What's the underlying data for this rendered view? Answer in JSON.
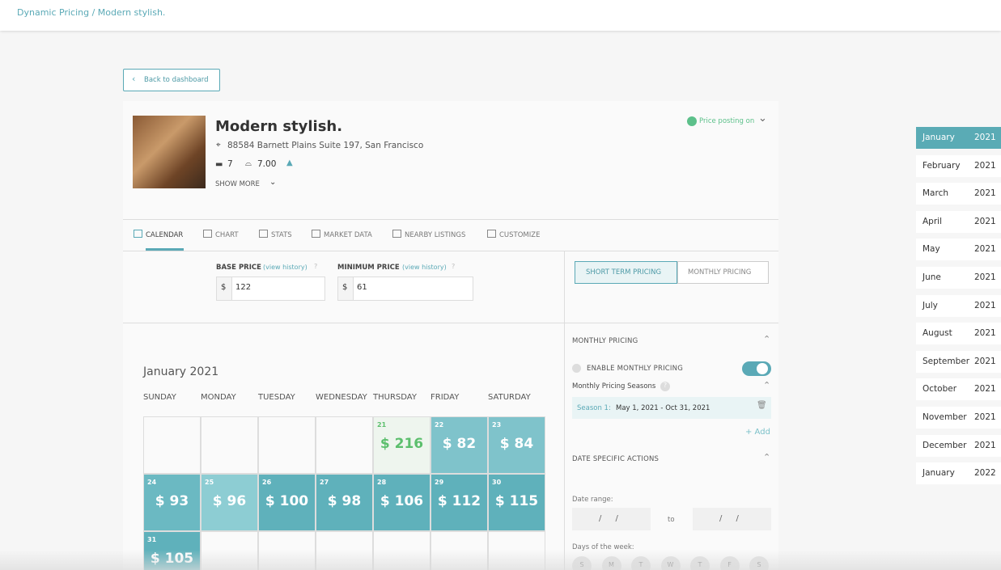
{
  "breadcrumb": "Dynamic Pricing / Modern stylish.",
  "back_button": "Back to dashboard",
  "listing": {
    "title": "Modern stylish.",
    "address": "88584 Barnett Plains Suite 197, San Francisco",
    "bedrooms": 7,
    "bathrooms": "7.00",
    "show_more": "SHOW MORE",
    "status": "Price posting on"
  },
  "tabs": [
    "CALENDAR",
    "CHART",
    "STATS",
    "MARKET DATA",
    "NEARBY LISTINGS",
    "CUSTOMIZE"
  ],
  "pricing": {
    "base": {
      "label": "BASE PRICE",
      "link": "(view history)",
      "help": "?",
      "currency": "$",
      "value": 122
    },
    "minimum": {
      "label": "MINIMUM PRICE",
      "link": "(view history)",
      "help": "?",
      "currency": "$",
      "value": 61
    }
  },
  "pricing_modes": [
    "SHORT TERM PRICING",
    "MONTHLY PRICING"
  ],
  "calendar": {
    "title": "January 2021",
    "weekdays": [
      "SUNDAY",
      "MONDAY",
      "TUESDAY",
      "WEDNESDAY",
      "THURSDAY",
      "FRIDAY",
      "SATURDAY"
    ],
    "cells": [
      null,
      null,
      null,
      null,
      {
        "day": 21,
        "price": "$ 216",
        "color": "#eef5ee"
      },
      {
        "day": 22,
        "price": "$ 82",
        "color": "#7fc3cb"
      },
      {
        "day": 23,
        "price": "$ 84",
        "color": "#7fc3cb"
      },
      {
        "day": 24,
        "price": "$ 93",
        "color": "#6bb9c2"
      },
      {
        "day": 25,
        "price": "$ 96",
        "color": "#8dcdd3"
      },
      {
        "day": 26,
        "price": "$ 100",
        "color": "#5fb1bb"
      },
      {
        "day": 27,
        "price": "$ 98",
        "color": "#5fb1bb"
      },
      {
        "day": 28,
        "price": "$ 106",
        "color": "#5fb1bb"
      },
      {
        "day": 29,
        "price": "$ 112",
        "color": "#5fb1bb"
      },
      {
        "day": 30,
        "price": "$ 115",
        "color": "#5fb1bb"
      },
      {
        "day": 31,
        "price": "$ 105",
        "color": "#5fb1bb"
      },
      null,
      null,
      null,
      null,
      null,
      null
    ]
  },
  "monthly_pricing": {
    "title": "MONTHLY PRICING",
    "enable": "ENABLE MONTHLY PRICING",
    "seasons_label": "Monthly Pricing Seasons",
    "help": "?",
    "season_label": "Season 1:",
    "season_range": "May 1, 2021 - Oct 31, 2021",
    "add": "+ Add"
  },
  "date_actions": {
    "title": "DATE SPECIFIC ACTIONS",
    "date_range_label": "Date range:",
    "date_placeholder": "/ /",
    "to": "to",
    "days_label": "Days of the week:",
    "days": [
      "S",
      "M",
      "T",
      "W",
      "T",
      "F",
      "S"
    ]
  },
  "months": [
    {
      "month": "January",
      "year": 2021
    },
    {
      "month": "February",
      "year": 2021
    },
    {
      "month": "March",
      "year": 2021
    },
    {
      "month": "April",
      "year": 2021
    },
    {
      "month": "May",
      "year": 2021
    },
    {
      "month": "June",
      "year": 2021
    },
    {
      "month": "July",
      "year": 2021
    },
    {
      "month": "August",
      "year": 2021
    },
    {
      "month": "September",
      "year": 2021
    },
    {
      "month": "October",
      "year": 2021
    },
    {
      "month": "November",
      "year": 2021
    },
    {
      "month": "December",
      "year": 2021
    },
    {
      "month": "January",
      "year": 2022
    }
  ]
}
